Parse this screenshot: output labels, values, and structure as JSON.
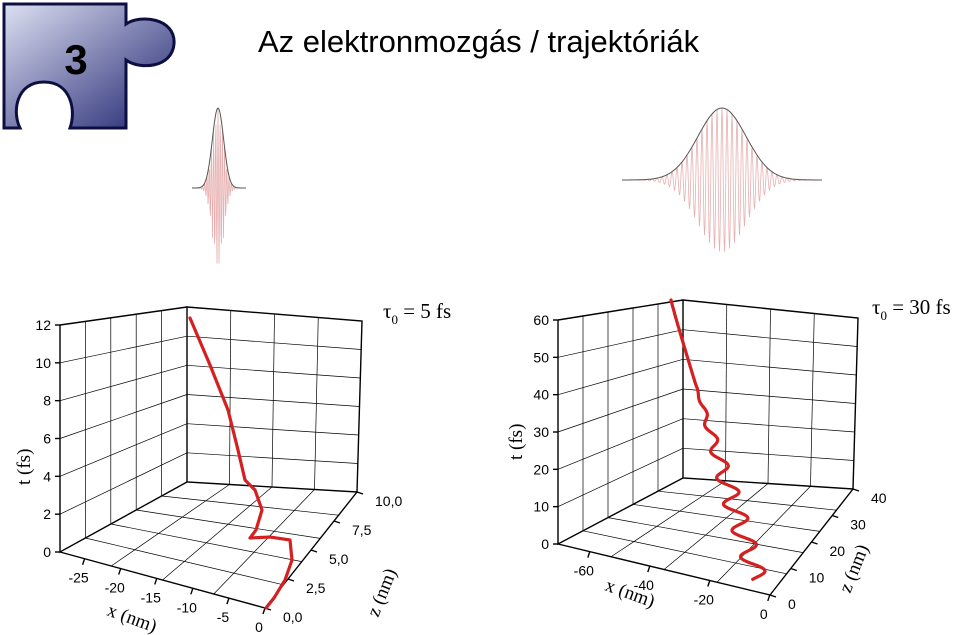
{
  "badge": {
    "number": "3",
    "colors": {
      "light": "#dde0f2",
      "dark": "#1f236f",
      "edge": "#0c0f40"
    }
  },
  "title": "Az elektronmozgás / trajektóriák",
  "colors": {
    "trajectory": "#d42020",
    "pulse_fill": "#e7b0b0",
    "envelope": "#555555"
  },
  "pulses": [
    {
      "name": "short-pulse"
    },
    {
      "name": "long-pulse"
    }
  ],
  "plot_left": {
    "tau_symbol": "τ",
    "tau_sub": "0",
    "tau_rest": " = 5 fs",
    "t_label": "t (fs)",
    "x_label": "x (nm)",
    "z_label": "z (nm)",
    "t_ticks": [
      "0",
      "2",
      "4",
      "6",
      "8",
      "10",
      "12"
    ],
    "x_ticks": [
      "-25",
      "-20",
      "-15",
      "-10",
      "-5",
      "0"
    ],
    "z_ticks": [
      "0,0",
      "2,5",
      "5,0",
      "7,5",
      "10,0"
    ]
  },
  "plot_right": {
    "tau_symbol": "τ",
    "tau_sub": "0",
    "tau_rest": " = 30 fs",
    "t_label": "t (fs)",
    "x_label": "x (nm)",
    "z_label": "z (nm)",
    "t_ticks": [
      "0",
      "10",
      "20",
      "30",
      "40",
      "50",
      "60"
    ],
    "x_ticks": [
      "-60",
      "-40",
      "-20",
      "0"
    ],
    "z_ticks": [
      "0",
      "10",
      "20",
      "30",
      "40"
    ]
  }
}
